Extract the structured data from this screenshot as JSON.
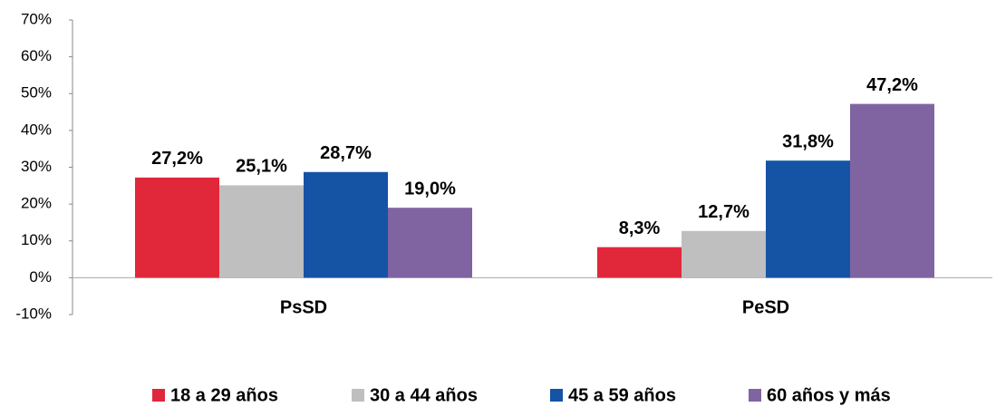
{
  "chart_data": {
    "type": "bar",
    "categories": [
      "PsSD",
      "PeSD"
    ],
    "series": [
      {
        "name": "18 a 29 años",
        "color": "#e0283a",
        "values": [
          27.2,
          8.3
        ],
        "value_labels": [
          "27,2%",
          "8,3%"
        ]
      },
      {
        "name": "30 a 44 años",
        "color": "#bfbfbf",
        "values": [
          25.1,
          12.7
        ],
        "value_labels": [
          "25,1%",
          "12,7%"
        ]
      },
      {
        "name": "45 a 59 años",
        "color": "#1553a5",
        "values": [
          28.7,
          31.8
        ],
        "value_labels": [
          "28,7%",
          "31,8%"
        ]
      },
      {
        "name": "60 años y más",
        "color": "#8064a2",
        "values": [
          19.0,
          47.2
        ],
        "value_labels": [
          "19,0%",
          "47,2%"
        ]
      }
    ],
    "ylim": [
      -10,
      70
    ],
    "yticks": [
      {
        "value": -10,
        "label": "-10%"
      },
      {
        "value": 0,
        "label": "0%"
      },
      {
        "value": 10,
        "label": "10%"
      },
      {
        "value": 20,
        "label": "20%"
      },
      {
        "value": 30,
        "label": "30%"
      },
      {
        "value": 40,
        "label": "40%"
      },
      {
        "value": 50,
        "label": "50%"
      },
      {
        "value": 60,
        "label": "60%"
      },
      {
        "value": 70,
        "label": "70%"
      }
    ],
    "grid": false,
    "legend": "bottom"
  }
}
